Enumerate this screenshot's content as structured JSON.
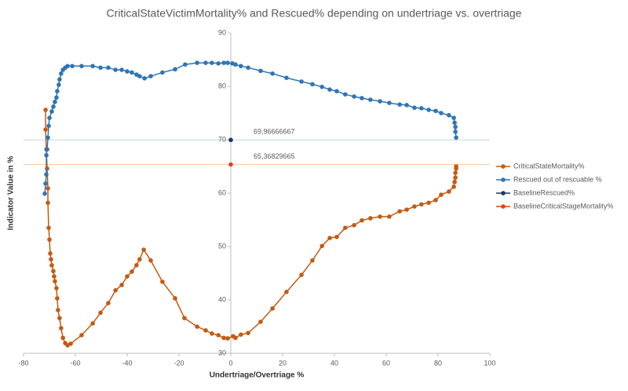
{
  "chart_data": {
    "type": "scatter",
    "title": "CriticalStateVictimMortality% and Rescued% depending on undertriage vs. overtriage",
    "x_label": "Undertriage/Overtriage %",
    "y_label": "Indicator Value in %",
    "xlim": [
      -80,
      100
    ],
    "xticks": [
      -80,
      -60,
      -40,
      -20,
      0,
      20,
      40,
      60,
      80,
      100
    ],
    "ylim": [
      30,
      90
    ],
    "yticks": [
      30,
      40,
      50,
      60,
      70,
      80,
      90
    ],
    "legend": "right",
    "series": [
      {
        "name": "CriticalStateMortality%",
        "color": "#c55a11",
        "line": true,
        "x": [
          -71.5,
          -71.5,
          -71.2,
          -70.9,
          -70.6,
          -70.6,
          -70.3,
          -70,
          -69.7,
          -69.4,
          -69.1,
          -68.5,
          -68.2,
          -67.9,
          -67.3,
          -67,
          -66.7,
          -66.1,
          -65.5,
          -64.8,
          -63.9,
          -63,
          -61.8,
          -57.6,
          -53.3,
          -50.3,
          -47.3,
          -44.5,
          -42.1,
          -40,
          -38.2,
          -36.4,
          -35.2,
          -33.6,
          -30.9,
          -26.4,
          -21.5,
          -17.9,
          -13,
          -9.7,
          -7.3,
          -4.8,
          -2.7,
          -1.2,
          0.9,
          1.8,
          3.9,
          6.7,
          11.5,
          16.1,
          21.5,
          27.3,
          31.5,
          35.2,
          38.2,
          40.9,
          44.2,
          47.6,
          50.6,
          53.9,
          57.6,
          61.2,
          65.2,
          67.9,
          70.9,
          73.6,
          76.4,
          79.1,
          81.2,
          84.2,
          86.1,
          86.4,
          86.7,
          86.7,
          87,
          87
        ],
        "values": [
          75.6,
          71.9,
          68.2,
          64.6,
          60.9,
          58.2,
          53.5,
          51.3,
          48.7,
          47.6,
          46.5,
          45.4,
          44.4,
          43.5,
          42.2,
          40.3,
          38.1,
          36.6,
          34.7,
          32.9,
          31.9,
          31.5,
          31.8,
          33.4,
          35.6,
          37.6,
          39.4,
          41.8,
          42.8,
          44.4,
          45.3,
          46.5,
          47.6,
          49.4,
          47.4,
          43.4,
          40.3,
          36.6,
          35,
          34.3,
          33.7,
          33.4,
          32.9,
          32.8,
          33.2,
          32.9,
          33.5,
          33.8,
          35.9,
          38.4,
          41.5,
          44.7,
          47.4,
          50.1,
          51.6,
          51.8,
          53.5,
          54,
          54.9,
          55.3,
          55.6,
          55.6,
          56.6,
          56.9,
          57.5,
          57.9,
          58.2,
          58.7,
          59.7,
          60.3,
          61.2,
          62.1,
          62.9,
          63.8,
          64.6,
          65
        ]
      },
      {
        "name": "Rescued out of rescuable %",
        "color": "#2e75b6",
        "line": true,
        "x": [
          -71.8,
          -71.5,
          -71.2,
          -71.2,
          -70.9,
          -70.6,
          -70.3,
          -70,
          -69.1,
          -68.5,
          -67.9,
          -67.3,
          -67,
          -66.4,
          -66.1,
          -65.5,
          -64.8,
          -63.9,
          -63,
          -61.2,
          -57.6,
          -53.3,
          -50.3,
          -47.3,
          -44.5,
          -42.1,
          -40,
          -38.2,
          -36.4,
          -35.2,
          -33.3,
          -30.9,
          -26.4,
          -21.5,
          -17.6,
          -13,
          -9.7,
          -7.3,
          -4.8,
          -2.7,
          -1.2,
          0.6,
          1.8,
          3.9,
          6.7,
          11.5,
          16.1,
          21.5,
          27.3,
          31.5,
          35.2,
          38.2,
          40.9,
          44.2,
          47.6,
          50.6,
          53.9,
          57.6,
          61.2,
          65.2,
          67.9,
          70.9,
          73.6,
          76.4,
          79.1,
          81.2,
          84.2,
          86.1,
          86.4,
          86.7,
          86.7,
          87
        ],
        "values": [
          59.9,
          61.8,
          63.5,
          67.1,
          68.2,
          70.4,
          72.6,
          74.1,
          75.3,
          76.2,
          77.1,
          77.9,
          79.1,
          80.3,
          81.3,
          82.4,
          83.1,
          83.5,
          83.8,
          83.8,
          83.8,
          83.8,
          83.5,
          83.5,
          83.1,
          83.1,
          82.8,
          82.6,
          82.2,
          81.9,
          81.5,
          81.9,
          82.6,
          83.2,
          84.1,
          84.4,
          84.4,
          84.4,
          84.3,
          84.4,
          84.4,
          84.3,
          84.1,
          83.8,
          83.5,
          82.9,
          82.4,
          81.6,
          80.9,
          80.4,
          79.9,
          79.4,
          79.1,
          78.5,
          78.1,
          77.8,
          77.5,
          77.2,
          76.9,
          76.6,
          76.5,
          76,
          75.9,
          75.6,
          75.4,
          75,
          74.6,
          74.1,
          73.2,
          72.4,
          71.5,
          70.4
        ]
      },
      {
        "name": "BaselineRescued%",
        "color": "#1f3864",
        "line": false,
        "hline_color": "#bdd7ee",
        "x": [
          0
        ],
        "values": [
          69.96666667
        ],
        "value_labels": [
          "69,96666667"
        ]
      },
      {
        "name": "BaselineCriticalStageMortality%",
        "color": "#e8400c",
        "line": false,
        "hline_color": "#f8cbad",
        "x": [
          0
        ],
        "values": [
          65.36829665
        ],
        "value_labels": [
          "65,36829665"
        ]
      }
    ]
  }
}
